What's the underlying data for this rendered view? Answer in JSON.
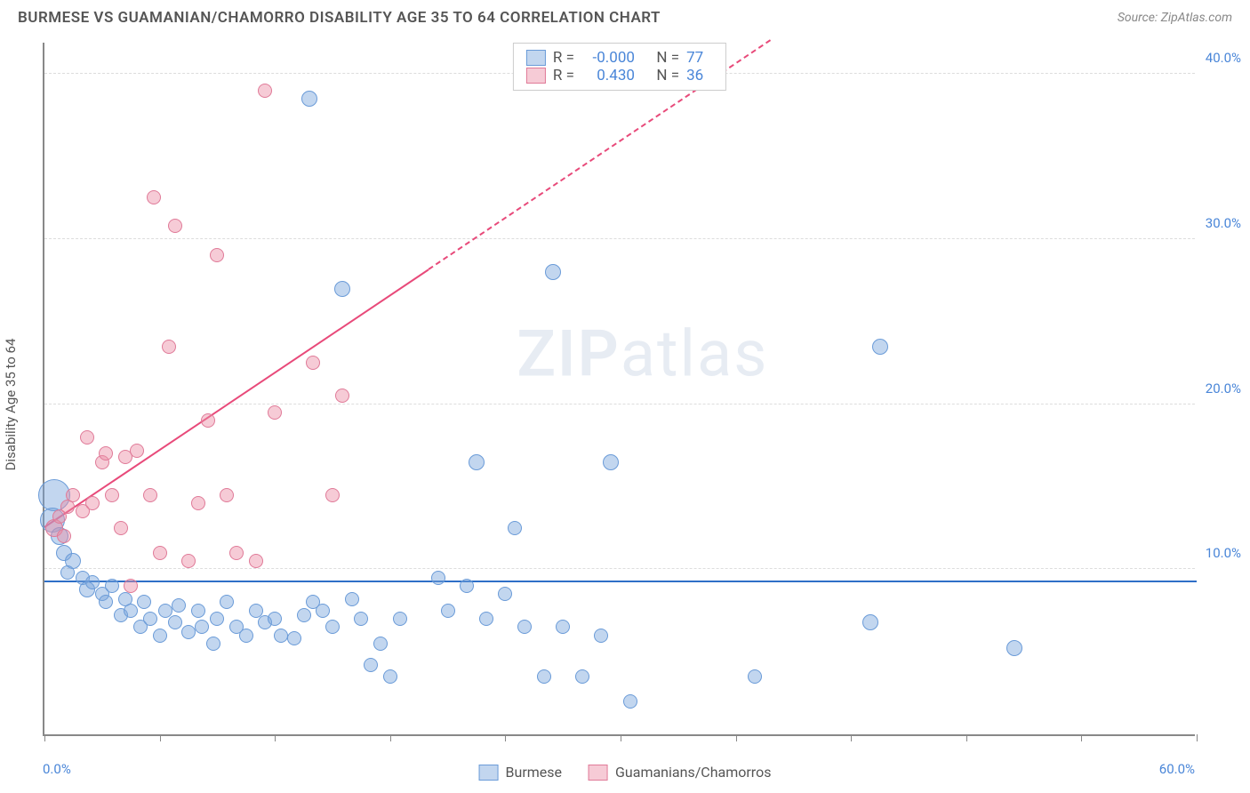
{
  "title": "BURMESE VS GUAMANIAN/CHAMORRO DISABILITY AGE 35 TO 64 CORRELATION CHART",
  "source": "Source: ZipAtlas.com",
  "watermark_a": "ZIP",
  "watermark_b": "atlas",
  "y_axis_title": "Disability Age 35 to 64",
  "chart": {
    "type": "scatter",
    "xlim": [
      0,
      60
    ],
    "ylim": [
      0,
      42
    ],
    "y_ticks": [
      10,
      20,
      30,
      40
    ],
    "y_tick_labels": [
      "10.0%",
      "20.0%",
      "30.0%",
      "40.0%"
    ],
    "x_ticks": [
      0,
      6,
      12,
      18,
      24,
      30,
      36,
      42,
      48,
      54,
      60
    ],
    "x_min_label": "0.0%",
    "x_max_label": "60.0%",
    "background_color": "#ffffff",
    "grid_color": "#dddddd",
    "axis_color": "#888888",
    "tick_label_color": "#4a86d8",
    "series": [
      {
        "name": "Burmese",
        "fill": "rgba(120,165,220,0.45)",
        "stroke": "#6a9bd8",
        "r_value": "-0.000",
        "n_value": "77",
        "trend": {
          "y_intercept": 9.2,
          "slope": 0,
          "x_solid_end": 60,
          "color": "#2e6fc7"
        },
        "points": [
          {
            "x": 0.5,
            "y": 14.5,
            "r": 18
          },
          {
            "x": 0.4,
            "y": 13.0,
            "r": 14
          },
          {
            "x": 0.8,
            "y": 12.0,
            "r": 10
          },
          {
            "x": 1.0,
            "y": 11.0,
            "r": 9
          },
          {
            "x": 1.5,
            "y": 10.5,
            "r": 9
          },
          {
            "x": 1.2,
            "y": 9.8,
            "r": 8
          },
          {
            "x": 2.0,
            "y": 9.5,
            "r": 8
          },
          {
            "x": 2.2,
            "y": 8.8,
            "r": 9
          },
          {
            "x": 2.5,
            "y": 9.2,
            "r": 8
          },
          {
            "x": 3.0,
            "y": 8.5,
            "r": 8
          },
          {
            "x": 3.2,
            "y": 8.0,
            "r": 8
          },
          {
            "x": 3.5,
            "y": 9.0,
            "r": 8
          },
          {
            "x": 4.0,
            "y": 7.2,
            "r": 8
          },
          {
            "x": 4.2,
            "y": 8.2,
            "r": 8
          },
          {
            "x": 4.5,
            "y": 7.5,
            "r": 8
          },
          {
            "x": 5.0,
            "y": 6.5,
            "r": 8
          },
          {
            "x": 5.2,
            "y": 8.0,
            "r": 8
          },
          {
            "x": 5.5,
            "y": 7.0,
            "r": 8
          },
          {
            "x": 6.0,
            "y": 6.0,
            "r": 8
          },
          {
            "x": 6.3,
            "y": 7.5,
            "r": 8
          },
          {
            "x": 6.8,
            "y": 6.8,
            "r": 8
          },
          {
            "x": 7.0,
            "y": 7.8,
            "r": 8
          },
          {
            "x": 7.5,
            "y": 6.2,
            "r": 8
          },
          {
            "x": 8.0,
            "y": 7.5,
            "r": 8
          },
          {
            "x": 8.2,
            "y": 6.5,
            "r": 8
          },
          {
            "x": 8.8,
            "y": 5.5,
            "r": 8
          },
          {
            "x": 9.0,
            "y": 7.0,
            "r": 8
          },
          {
            "x": 9.5,
            "y": 8.0,
            "r": 8
          },
          {
            "x": 10.0,
            "y": 6.5,
            "r": 8
          },
          {
            "x": 10.5,
            "y": 6.0,
            "r": 8
          },
          {
            "x": 11.0,
            "y": 7.5,
            "r": 8
          },
          {
            "x": 11.5,
            "y": 6.8,
            "r": 8
          },
          {
            "x": 12.0,
            "y": 7.0,
            "r": 8
          },
          {
            "x": 12.3,
            "y": 6.0,
            "r": 8
          },
          {
            "x": 13.0,
            "y": 5.8,
            "r": 8
          },
          {
            "x": 13.5,
            "y": 7.2,
            "r": 8
          },
          {
            "x": 14.0,
            "y": 8.0,
            "r": 8
          },
          {
            "x": 14.5,
            "y": 7.5,
            "r": 8
          },
          {
            "x": 15.0,
            "y": 6.5,
            "r": 8
          },
          {
            "x": 15.5,
            "y": 27.0,
            "r": 9
          },
          {
            "x": 16.0,
            "y": 8.2,
            "r": 8
          },
          {
            "x": 16.5,
            "y": 7.0,
            "r": 8
          },
          {
            "x": 17.0,
            "y": 4.2,
            "r": 8
          },
          {
            "x": 17.5,
            "y": 5.5,
            "r": 8
          },
          {
            "x": 18.0,
            "y": 3.5,
            "r": 8
          },
          {
            "x": 18.5,
            "y": 7.0,
            "r": 8
          },
          {
            "x": 13.8,
            "y": 38.5,
            "r": 9
          },
          {
            "x": 20.5,
            "y": 9.5,
            "r": 8
          },
          {
            "x": 21.0,
            "y": 7.5,
            "r": 8
          },
          {
            "x": 22.0,
            "y": 9.0,
            "r": 8
          },
          {
            "x": 22.5,
            "y": 16.5,
            "r": 9
          },
          {
            "x": 23.0,
            "y": 7.0,
            "r": 8
          },
          {
            "x": 24.0,
            "y": 8.5,
            "r": 8
          },
          {
            "x": 24.5,
            "y": 12.5,
            "r": 8
          },
          {
            "x": 25.0,
            "y": 6.5,
            "r": 8
          },
          {
            "x": 26.0,
            "y": 3.5,
            "r": 8
          },
          {
            "x": 26.5,
            "y": 28.0,
            "r": 9
          },
          {
            "x": 27.0,
            "y": 6.5,
            "r": 8
          },
          {
            "x": 28.0,
            "y": 3.5,
            "r": 8
          },
          {
            "x": 29.0,
            "y": 6.0,
            "r": 8
          },
          {
            "x": 29.5,
            "y": 16.5,
            "r": 9
          },
          {
            "x": 30.5,
            "y": 2.0,
            "r": 8
          },
          {
            "x": 37.0,
            "y": 3.5,
            "r": 8
          },
          {
            "x": 43.0,
            "y": 6.8,
            "r": 9
          },
          {
            "x": 43.5,
            "y": 23.5,
            "r": 9
          },
          {
            "x": 50.5,
            "y": 5.2,
            "r": 9
          }
        ]
      },
      {
        "name": "Guamanians/Chamorros",
        "fill": "rgba(235,140,165,0.45)",
        "stroke": "#e07a98",
        "r_value": "0.430",
        "n_value": "36",
        "trend": {
          "y_intercept": 12.5,
          "slope": 0.78,
          "x_solid_end": 20,
          "color": "#e84a7a"
        },
        "points": [
          {
            "x": 0.5,
            "y": 12.5,
            "r": 10
          },
          {
            "x": 0.8,
            "y": 13.2,
            "r": 8
          },
          {
            "x": 1.0,
            "y": 12.0,
            "r": 8
          },
          {
            "x": 1.2,
            "y": 13.8,
            "r": 8
          },
          {
            "x": 1.5,
            "y": 14.5,
            "r": 8
          },
          {
            "x": 2.0,
            "y": 13.5,
            "r": 8
          },
          {
            "x": 2.2,
            "y": 18.0,
            "r": 8
          },
          {
            "x": 2.5,
            "y": 14.0,
            "r": 8
          },
          {
            "x": 3.0,
            "y": 16.5,
            "r": 8
          },
          {
            "x": 3.2,
            "y": 17.0,
            "r": 8
          },
          {
            "x": 3.5,
            "y": 14.5,
            "r": 8
          },
          {
            "x": 4.0,
            "y": 12.5,
            "r": 8
          },
          {
            "x": 4.2,
            "y": 16.8,
            "r": 8
          },
          {
            "x": 4.5,
            "y": 9.0,
            "r": 8
          },
          {
            "x": 4.8,
            "y": 17.2,
            "r": 8
          },
          {
            "x": 5.5,
            "y": 14.5,
            "r": 8
          },
          {
            "x": 5.7,
            "y": 32.5,
            "r": 8
          },
          {
            "x": 6.0,
            "y": 11.0,
            "r": 8
          },
          {
            "x": 6.5,
            "y": 23.5,
            "r": 8
          },
          {
            "x": 6.8,
            "y": 30.8,
            "r": 8
          },
          {
            "x": 7.5,
            "y": 10.5,
            "r": 8
          },
          {
            "x": 8.0,
            "y": 14.0,
            "r": 8
          },
          {
            "x": 8.5,
            "y": 19.0,
            "r": 8
          },
          {
            "x": 9.0,
            "y": 29.0,
            "r": 8
          },
          {
            "x": 9.5,
            "y": 14.5,
            "r": 8
          },
          {
            "x": 10.0,
            "y": 11.0,
            "r": 8
          },
          {
            "x": 11.0,
            "y": 10.5,
            "r": 8
          },
          {
            "x": 11.5,
            "y": 39.0,
            "r": 8
          },
          {
            "x": 12.0,
            "y": 19.5,
            "r": 8
          },
          {
            "x": 14.0,
            "y": 22.5,
            "r": 8
          },
          {
            "x": 15.0,
            "y": 14.5,
            "r": 8
          },
          {
            "x": 15.5,
            "y": 20.5,
            "r": 8
          }
        ]
      }
    ]
  },
  "legend_top": {
    "r_label": "R =",
    "n_label": "N ="
  },
  "legend_bottom": {
    "items": [
      "Burmese",
      "Guamanians/Chamorros"
    ]
  }
}
